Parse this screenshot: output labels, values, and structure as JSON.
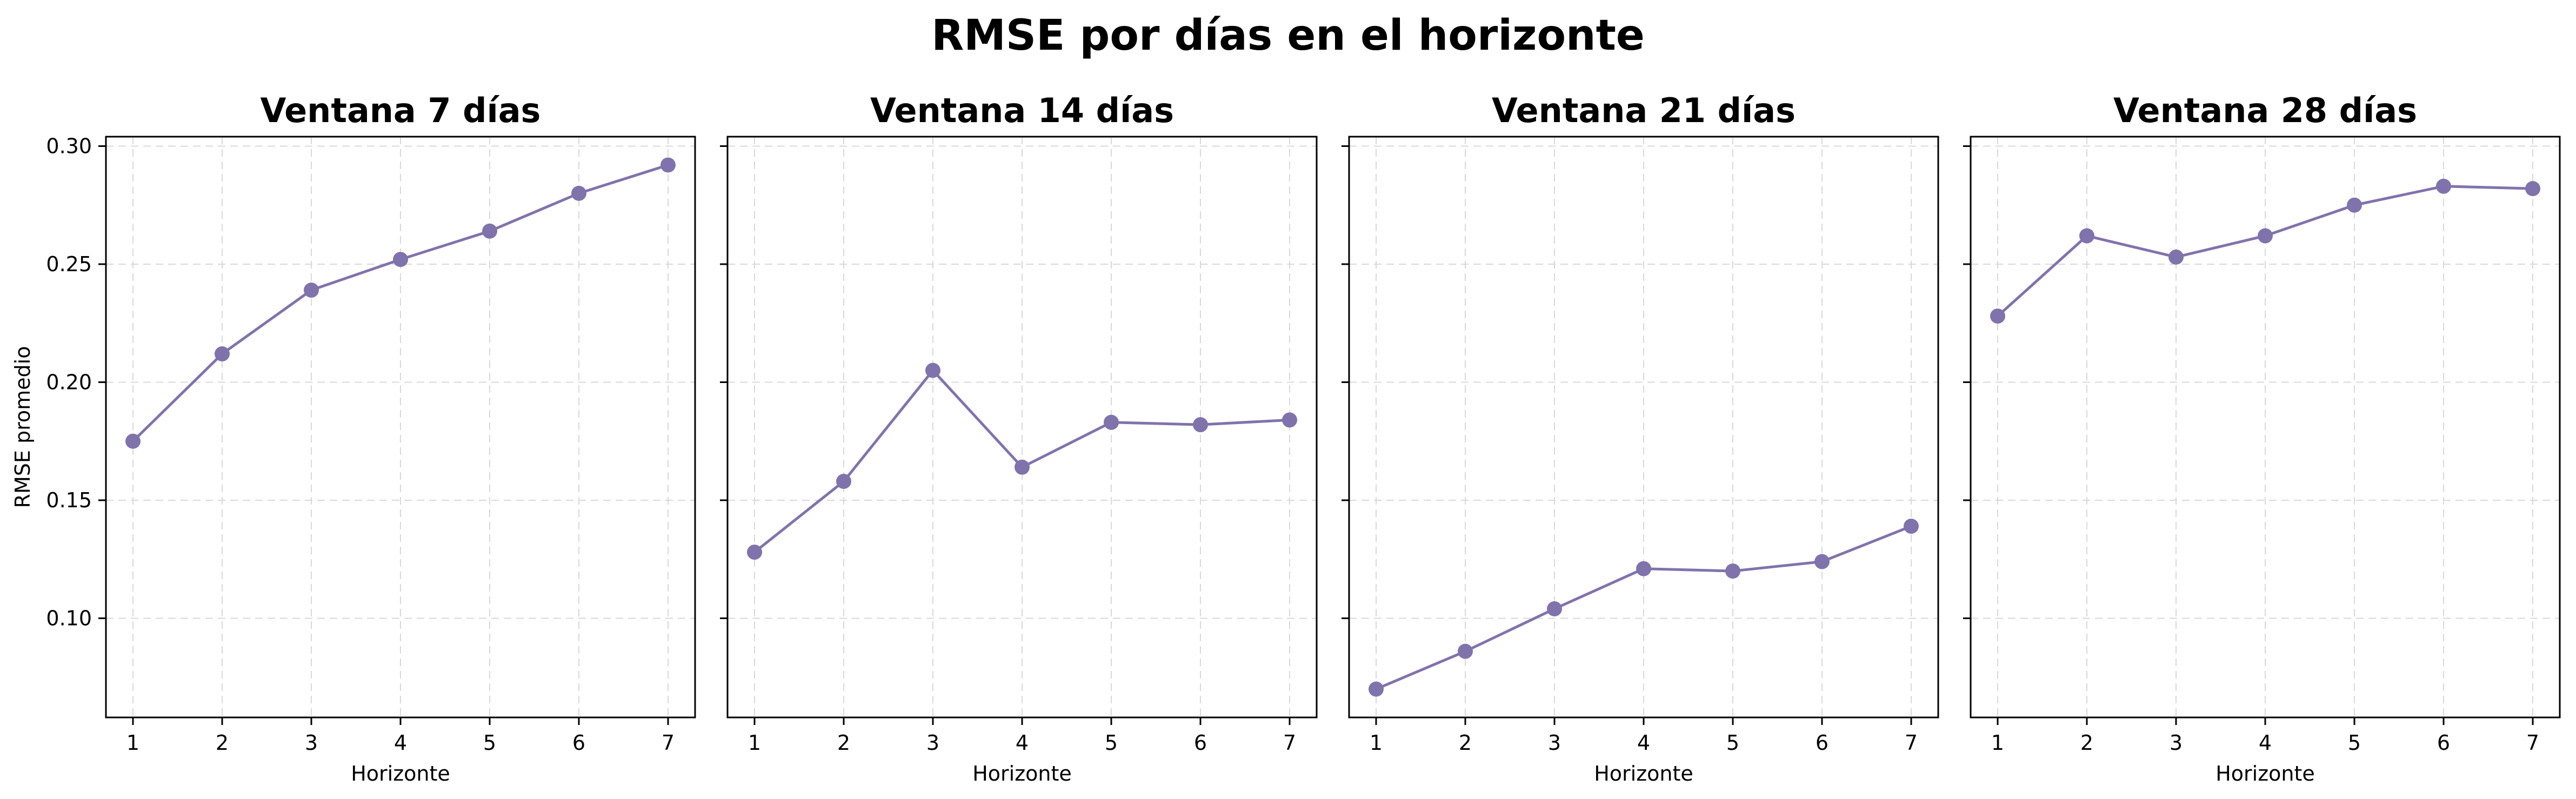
{
  "figure": {
    "title": "RMSE por días en el horizonte"
  },
  "colors": {
    "line": "#8073ac",
    "marker": "#8073ac",
    "grid": "#d9d9d9"
  },
  "chart_data": [
    {
      "type": "line",
      "title": "Ventana 7 días",
      "xlabel": "Horizonte",
      "ylabel": "RMSE promedio",
      "x": [
        1,
        2,
        3,
        4,
        5,
        6,
        7
      ],
      "x_tick_labels": [
        "1",
        "2",
        "3",
        "4",
        "5",
        "6",
        "7"
      ],
      "y_tick_labels": [
        "0.10",
        "0.15",
        "0.20",
        "0.25",
        "0.30"
      ],
      "y_ticks": [
        0.1,
        0.15,
        0.2,
        0.25,
        0.3
      ],
      "ylim": [
        0.058,
        0.304
      ],
      "grid": true,
      "series": [
        {
          "values": [
            0.175,
            0.212,
            0.239,
            0.252,
            0.264,
            0.28,
            0.292
          ]
        }
      ]
    },
    {
      "type": "line",
      "title": "Ventana 14 días",
      "xlabel": "Horizonte",
      "x": [
        1,
        2,
        3,
        4,
        5,
        6,
        7
      ],
      "x_tick_labels": [
        "1",
        "2",
        "3",
        "4",
        "5",
        "6",
        "7"
      ],
      "y_ticks": [
        0.1,
        0.15,
        0.2,
        0.25,
        0.3
      ],
      "ylim": [
        0.058,
        0.304
      ],
      "grid": true,
      "series": [
        {
          "values": [
            0.128,
            0.158,
            0.205,
            0.164,
            0.183,
            0.182,
            0.184
          ]
        }
      ]
    },
    {
      "type": "line",
      "title": "Ventana 21 días",
      "xlabel": "Horizonte",
      "x": [
        1,
        2,
        3,
        4,
        5,
        6,
        7
      ],
      "x_tick_labels": [
        "1",
        "2",
        "3",
        "4",
        "5",
        "6",
        "7"
      ],
      "y_ticks": [
        0.1,
        0.15,
        0.2,
        0.25,
        0.3
      ],
      "ylim": [
        0.058,
        0.304
      ],
      "grid": true,
      "series": [
        {
          "values": [
            0.07,
            0.086,
            0.104,
            0.121,
            0.12,
            0.124,
            0.139
          ]
        }
      ]
    },
    {
      "type": "line",
      "title": "Ventana 28 días",
      "xlabel": "Horizonte",
      "x": [
        1,
        2,
        3,
        4,
        5,
        6,
        7
      ],
      "x_tick_labels": [
        "1",
        "2",
        "3",
        "4",
        "5",
        "6",
        "7"
      ],
      "y_ticks": [
        0.1,
        0.15,
        0.2,
        0.25,
        0.3
      ],
      "ylim": [
        0.058,
        0.304
      ],
      "grid": true,
      "series": [
        {
          "values": [
            0.228,
            0.262,
            0.253,
            0.262,
            0.275,
            0.283,
            0.282
          ]
        }
      ]
    }
  ]
}
